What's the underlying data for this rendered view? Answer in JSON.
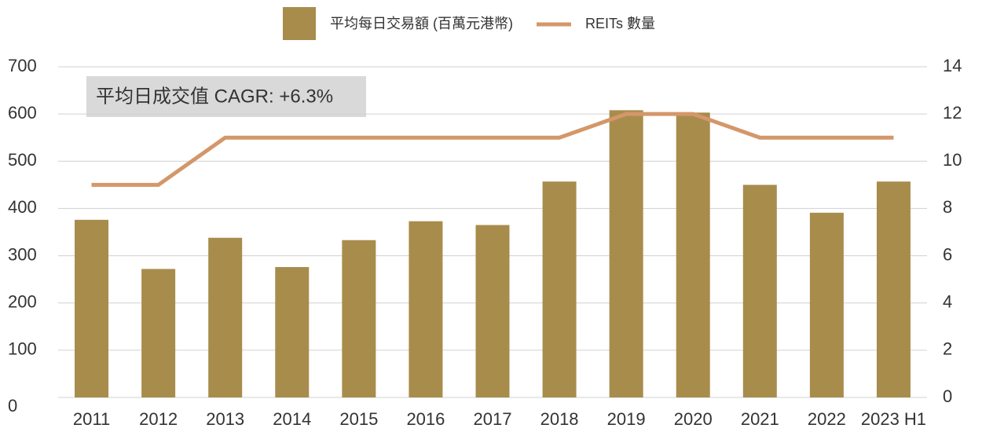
{
  "chart_data": {
    "type": "bar",
    "categories": [
      "2011",
      "2012",
      "2013",
      "2014",
      "2015",
      "2016",
      "2017",
      "2018",
      "2019",
      "2020",
      "2021",
      "2022",
      "2023 H1"
    ],
    "series": [
      {
        "name": "平均每日交易額 (百萬元港幣)",
        "type": "bar",
        "color": "#a88c4c",
        "values": [
          376,
          272,
          338,
          276,
          333,
          373,
          365,
          457,
          608,
          603,
          450,
          391,
          457
        ]
      },
      {
        "name": "REITs 數量",
        "type": "line",
        "axis": "y2",
        "color": "#d4976a",
        "values": [
          9,
          9,
          11,
          11,
          11,
          11,
          11,
          11,
          12,
          12,
          11,
          11,
          11
        ]
      }
    ],
    "annotation": "平均日成交值 CAGR: +6.3%",
    "ylim": [
      0,
      700
    ],
    "yticks": [
      0,
      100,
      200,
      300,
      400,
      500,
      600,
      700
    ],
    "y2lim": [
      0,
      14
    ],
    "y2ticks": [
      0,
      2,
      4,
      6,
      8,
      10,
      12,
      14
    ],
    "grid": true,
    "legend": "top"
  }
}
